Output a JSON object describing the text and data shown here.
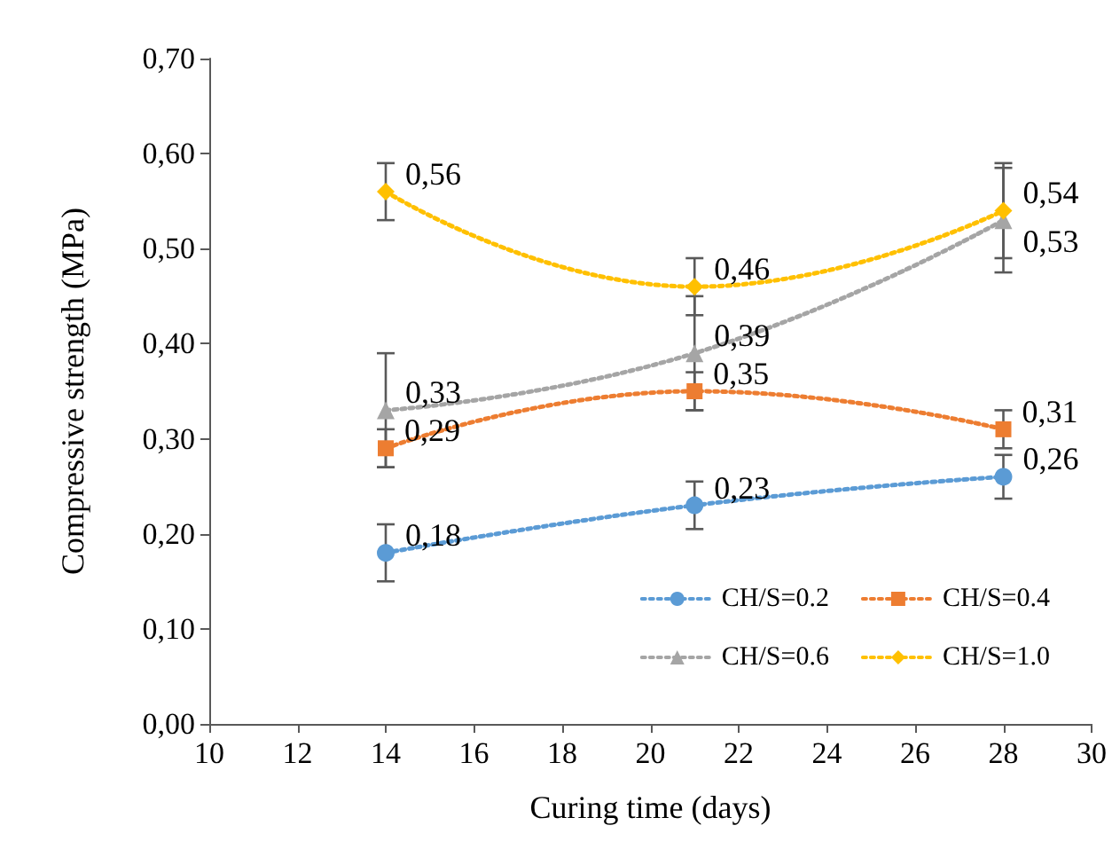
{
  "chart_data": {
    "type": "line",
    "xlabel": "Curing time (days)",
    "ylabel": "Compressive strength (MPa)",
    "xlim": [
      10,
      30
    ],
    "xticks": [
      10,
      12,
      14,
      16,
      18,
      20,
      22,
      24,
      26,
      28,
      30
    ],
    "ylim": [
      0,
      0.7
    ],
    "yticks": [
      {
        "value": 0,
        "label": "0,00"
      },
      {
        "value": 0.1,
        "label": "0,10"
      },
      {
        "value": 0.2,
        "label": "0,20"
      },
      {
        "value": 0.3,
        "label": "0,30"
      },
      {
        "value": 0.4,
        "label": "0,40"
      },
      {
        "value": 0.5,
        "label": "0,50"
      },
      {
        "value": 0.6,
        "label": "0,60"
      },
      {
        "value": 0.7,
        "label": "0,70"
      }
    ],
    "x": [
      14,
      21,
      28
    ],
    "series": [
      {
        "name": "CH/S=0.2",
        "color": "#5b9bd5",
        "marker": "circle",
        "values": [
          0.18,
          0.23,
          0.26
        ],
        "value_labels": [
          "0,18",
          "0,23",
          "0,26"
        ],
        "errors": [
          0.03,
          0.025,
          0.023
        ]
      },
      {
        "name": "CH/S=0.4",
        "color": "#ed7d31",
        "marker": "square",
        "values": [
          0.29,
          0.35,
          0.31
        ],
        "value_labels": [
          "0,29",
          "0,35",
          "0,31"
        ],
        "errors": [
          0.02,
          0.02,
          0.02
        ]
      },
      {
        "name": "CH/S=0.6",
        "color": "#a5a5a5",
        "marker": "triangle",
        "values": [
          0.33,
          0.39,
          0.53
        ],
        "value_labels": [
          "0,33",
          "0,39",
          "0,53"
        ],
        "errors": [
          0.06,
          0.06,
          0.055
        ]
      },
      {
        "name": "CH/S=1.0",
        "color": "#ffc000",
        "marker": "diamond",
        "values": [
          0.56,
          0.46,
          0.54
        ],
        "value_labels": [
          "0,56",
          "0,46",
          "0,54"
        ],
        "errors": [
          0.03,
          0.03,
          0.05
        ]
      }
    ],
    "line_style": "dotted",
    "grid": false,
    "legend": "bottom right"
  }
}
